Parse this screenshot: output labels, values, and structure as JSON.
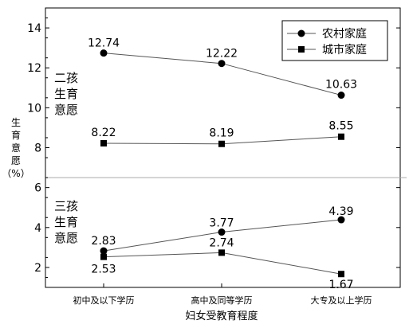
{
  "chart_data": {
    "type": "line",
    "xlabel": "妇女受教育程度",
    "ylabel": [
      "生",
      "育",
      "意",
      "愿",
      "（%）"
    ],
    "categories": [
      "初中及以下学历",
      "高中及同等学历",
      "大专及以上学历"
    ],
    "ylim": [
      1,
      15
    ],
    "yticks": [
      2,
      4,
      6,
      8,
      10,
      12,
      14
    ],
    "divider_y": 6.5,
    "grid": false,
    "legend_position": "top-right",
    "group_labels": {
      "second_child": [
        "二孩",
        "生育",
        "意愿"
      ],
      "third_child": [
        "三孩",
        "生育",
        "意愿"
      ]
    },
    "series": [
      {
        "name": "农村家庭",
        "group": "second_child",
        "marker": "circle",
        "values": [
          12.74,
          12.22,
          10.63
        ],
        "labels": [
          "12.74",
          "12.22",
          "10.63"
        ]
      },
      {
        "name": "城市家庭",
        "group": "second_child",
        "marker": "square",
        "values": [
          8.22,
          8.19,
          8.55
        ],
        "labels": [
          "8.22",
          "8.19",
          "8.55"
        ]
      },
      {
        "name": "农村家庭",
        "group": "third_child",
        "marker": "circle",
        "values": [
          2.83,
          3.77,
          4.39
        ],
        "labels": [
          "2.83",
          "3.77",
          "4.39"
        ]
      },
      {
        "name": "城市家庭",
        "group": "third_child",
        "marker": "square",
        "values": [
          2.53,
          2.74,
          1.67
        ],
        "labels": [
          "2.53",
          "2.74",
          "1.67"
        ]
      }
    ],
    "legend": [
      {
        "name": "农村家庭",
        "marker": "circle"
      },
      {
        "name": "城市家庭",
        "marker": "square"
      }
    ],
    "colors": {
      "line": "#555555",
      "marker": "#000000",
      "divider": "#aaaaaa"
    }
  }
}
